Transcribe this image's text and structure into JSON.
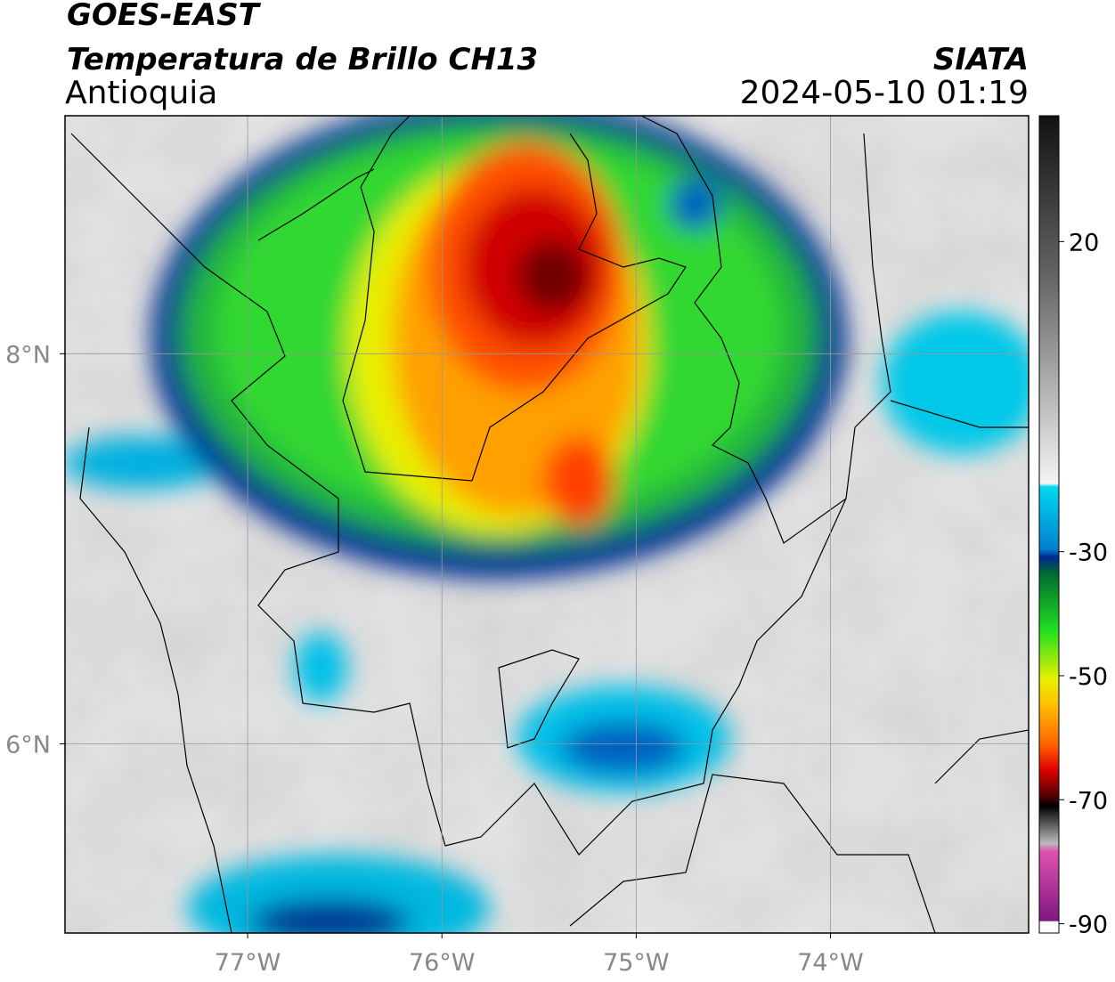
{
  "header": {
    "title": "GOES-EAST",
    "product": "Temperatura de Brillo CH13",
    "region": "Antioquia",
    "source": "SIATA",
    "datetime": "2024-05-10 01:19"
  },
  "map": {
    "xlim": [
      -77.94,
      -72.98
    ],
    "ylim": [
      5.03,
      9.22
    ],
    "xticks": [
      {
        "value": -77,
        "label": "77°W"
      },
      {
        "value": -76,
        "label": "76°W"
      },
      {
        "value": -75,
        "label": "75°W"
      },
      {
        "value": -74,
        "label": "74°W"
      }
    ],
    "yticks": [
      {
        "value": 8,
        "label": "8°N"
      },
      {
        "value": 6,
        "label": "6°N"
      }
    ]
  },
  "colorbar": {
    "lim": [
      -91.5,
      40.3
    ],
    "ticks": [
      20,
      -30,
      -50,
      -70,
      -90
    ]
  }
}
